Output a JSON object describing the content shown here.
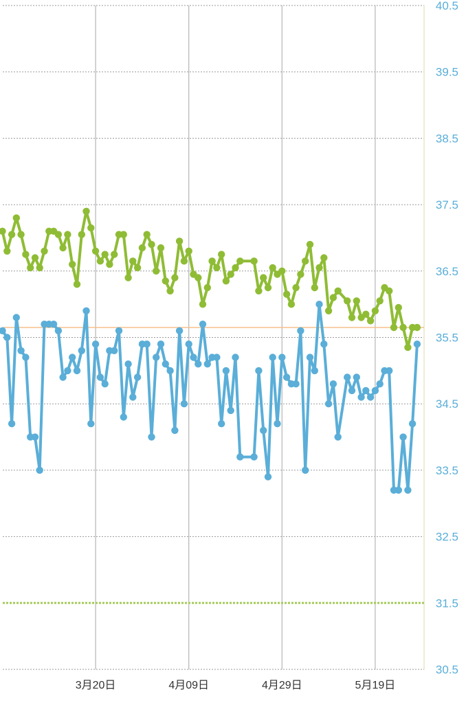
{
  "chart_data": {
    "type": "line",
    "title": "",
    "xlabel": "",
    "ylabel": "",
    "ylim": [
      30.5,
      40.5
    ],
    "y_ticks": [
      "40.5",
      "39.5",
      "38.5",
      "37.5",
      "36.5",
      "35.5",
      "34.5",
      "33.5",
      "32.5",
      "31.5",
      "30.5"
    ],
    "x_tick_labels": [
      "3月20日",
      "4月09日",
      "4月29日",
      "5月19日"
    ],
    "x_tick_days": [
      20,
      40,
      60,
      80
    ],
    "reference_line": 35.65,
    "goal_line": 31.5,
    "grid": true,
    "colors": {
      "upper_series": "#8fbc35",
      "lower_series": "#5aaed8",
      "reference_line": "#f5c08c",
      "goal_line": "#a6cc5a",
      "grid": "#9a9a9a",
      "vertical_grid": "#b5b5b5",
      "right_axis": "#e8e6c8"
    },
    "series": [
      {
        "points": [
          [
            0,
            37.1
          ],
          [
            1,
            36.8
          ],
          [
            2,
            37.05
          ],
          [
            3,
            37.3
          ],
          [
            4,
            37.05
          ],
          [
            5,
            36.75
          ],
          [
            6,
            36.55
          ],
          [
            7,
            36.7
          ],
          [
            8,
            36.55
          ],
          [
            9,
            36.8
          ],
          [
            10,
            37.1
          ],
          [
            11,
            37.1
          ],
          [
            12,
            37.05
          ],
          [
            13,
            36.85
          ],
          [
            14,
            37.05
          ],
          [
            15,
            36.6
          ],
          [
            16,
            36.3
          ],
          [
            17,
            37.05
          ],
          [
            18,
            37.4
          ],
          [
            19,
            37.15
          ],
          [
            20,
            36.8
          ],
          [
            21,
            36.65
          ],
          [
            22,
            36.75
          ],
          [
            23,
            36.6
          ],
          [
            24,
            36.75
          ],
          [
            25,
            37.05
          ],
          [
            26,
            37.05
          ],
          [
            27,
            36.4
          ],
          [
            28,
            36.65
          ],
          [
            29,
            36.55
          ],
          [
            30,
            36.85
          ],
          [
            31,
            37.05
          ],
          [
            32,
            36.9
          ],
          [
            33,
            36.5
          ],
          [
            34,
            36.85
          ],
          [
            35,
            36.35
          ],
          [
            36,
            36.2
          ],
          [
            37,
            36.4
          ],
          [
            38,
            36.95
          ],
          [
            39,
            36.65
          ],
          [
            40,
            36.8
          ],
          [
            41,
            36.45
          ],
          [
            42,
            36.4
          ],
          [
            43,
            36.0
          ],
          [
            44,
            36.25
          ],
          [
            45,
            36.65
          ],
          [
            46,
            36.55
          ],
          [
            47,
            36.75
          ],
          [
            48,
            36.35
          ],
          [
            49,
            36.45
          ],
          [
            50,
            36.55
          ],
          [
            51,
            36.65
          ],
          [
            54,
            36.65
          ],
          [
            55,
            36.2
          ],
          [
            56,
            36.4
          ],
          [
            57,
            36.25
          ],
          [
            58,
            36.55
          ],
          [
            59,
            36.45
          ],
          [
            60,
            36.5
          ],
          [
            61,
            36.15
          ],
          [
            62,
            36.0
          ],
          [
            63,
            36.25
          ],
          [
            64,
            36.45
          ],
          [
            65,
            36.65
          ],
          [
            66,
            36.9
          ],
          [
            67,
            36.25
          ],
          [
            68,
            36.55
          ],
          [
            69,
            36.7
          ],
          [
            70,
            35.9
          ],
          [
            71,
            36.1
          ],
          [
            72,
            36.2
          ],
          [
            74,
            36.05
          ],
          [
            75,
            35.8
          ],
          [
            76,
            36.05
          ],
          [
            77,
            35.8
          ],
          [
            78,
            35.85
          ],
          [
            79,
            35.75
          ],
          [
            80,
            35.9
          ],
          [
            81,
            36.05
          ],
          [
            82,
            36.25
          ],
          [
            83,
            36.2
          ],
          [
            84,
            35.65
          ],
          [
            85,
            35.95
          ],
          [
            86,
            35.65
          ],
          [
            87,
            35.35
          ],
          [
            88,
            35.65
          ],
          [
            89,
            35.65
          ]
        ]
      },
      {
        "points": [
          [
            0,
            35.6
          ],
          [
            1,
            35.5
          ],
          [
            2,
            34.2
          ],
          [
            3,
            35.8
          ],
          [
            4,
            35.3
          ],
          [
            5,
            35.2
          ],
          [
            6,
            34.0
          ],
          [
            7,
            34.0
          ],
          [
            8,
            33.5
          ],
          [
            9,
            35.7
          ],
          [
            10,
            35.7
          ],
          [
            11,
            35.7
          ],
          [
            12,
            35.6
          ],
          [
            13,
            34.9
          ],
          [
            14,
            35.0
          ],
          [
            15,
            35.2
          ],
          [
            16,
            35.0
          ],
          [
            17,
            35.3
          ],
          [
            18,
            35.9
          ],
          [
            19,
            34.2
          ],
          [
            20,
            35.4
          ],
          [
            21,
            34.9
          ],
          [
            22,
            34.8
          ],
          [
            23,
            35.3
          ],
          [
            24,
            35.3
          ],
          [
            25,
            35.6
          ],
          [
            26,
            34.3
          ],
          [
            27,
            35.1
          ],
          [
            28,
            34.6
          ],
          [
            29,
            34.9
          ],
          [
            30,
            35.4
          ],
          [
            31,
            35.4
          ],
          [
            32,
            34.0
          ],
          [
            33,
            35.2
          ],
          [
            34,
            35.4
          ],
          [
            35,
            35.1
          ],
          [
            36,
            35.0
          ],
          [
            37,
            34.1
          ],
          [
            38,
            35.6
          ],
          [
            39,
            34.5
          ],
          [
            40,
            35.4
          ],
          [
            41,
            35.2
          ],
          [
            42,
            35.1
          ],
          [
            43,
            35.7
          ],
          [
            44,
            35.1
          ],
          [
            45,
            35.2
          ],
          [
            46,
            35.2
          ],
          [
            47,
            34.2
          ],
          [
            48,
            35.0
          ],
          [
            49,
            34.4
          ],
          [
            50,
            35.2
          ],
          [
            51,
            33.7
          ],
          [
            54,
            33.7
          ],
          [
            55,
            35.0
          ],
          [
            56,
            34.1
          ],
          [
            57,
            33.4
          ],
          [
            58,
            35.2
          ],
          [
            59,
            34.2
          ],
          [
            60,
            35.2
          ],
          [
            61,
            34.9
          ],
          [
            62,
            34.8
          ],
          [
            63,
            34.8
          ],
          [
            64,
            35.6
          ],
          [
            65,
            33.5
          ],
          [
            66,
            35.2
          ],
          [
            67,
            35.0
          ],
          [
            68,
            36.0
          ],
          [
            69,
            35.4
          ],
          [
            70,
            34.5
          ],
          [
            71,
            34.8
          ],
          [
            72,
            34.0
          ],
          [
            74,
            34.9
          ],
          [
            75,
            34.7
          ],
          [
            76,
            34.9
          ],
          [
            77,
            34.6
          ],
          [
            78,
            34.7
          ],
          [
            79,
            34.6
          ],
          [
            80,
            34.7
          ],
          [
            81,
            34.8
          ],
          [
            82,
            35.0
          ],
          [
            83,
            35.0
          ],
          [
            84,
            33.2
          ],
          [
            85,
            33.2
          ],
          [
            86,
            34.0
          ],
          [
            87,
            33.2
          ],
          [
            88,
            34.2
          ],
          [
            89,
            35.4
          ]
        ]
      }
    ]
  }
}
